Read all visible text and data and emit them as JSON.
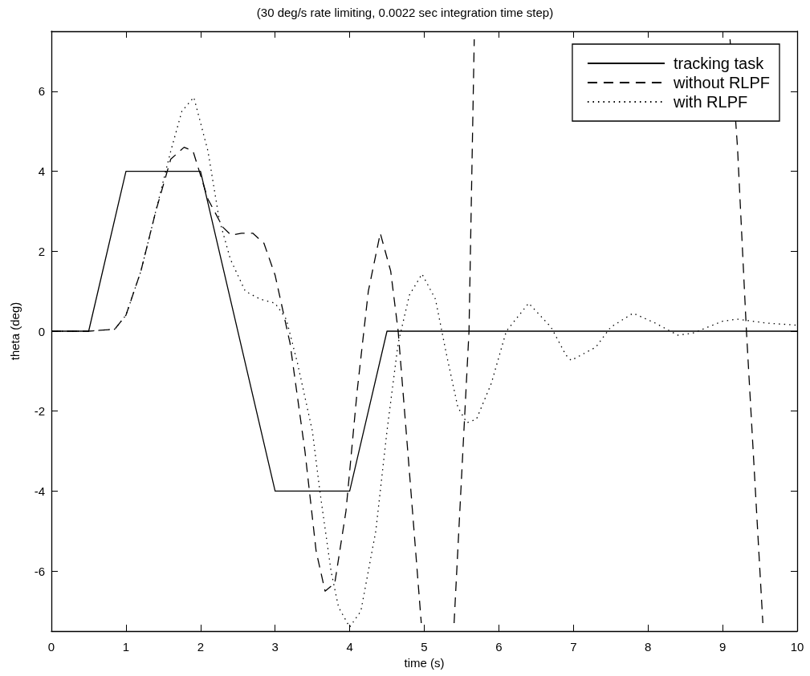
{
  "chart_data": {
    "type": "line",
    "title": "(30 deg/s rate limiting, 0.0022 sec integration time step)",
    "xlabel": "time (s)",
    "ylabel": "theta (deg)",
    "xlim": [
      0,
      10
    ],
    "xticks": [
      0,
      1,
      2,
      3,
      4,
      5,
      6,
      7,
      8,
      9,
      10
    ],
    "ylim": [
      -7.5,
      7.5
    ],
    "yticks": [
      -6,
      -4,
      -2,
      0,
      2,
      4,
      6
    ],
    "grid": false,
    "legend": "top right",
    "marker": "none",
    "series": [
      {
        "name": "tracking task",
        "color": "#000000",
        "line_style": "solid",
        "x": [
          0,
          0.5,
          1,
          2,
          3,
          4,
          4.5,
          10
        ],
        "values": [
          0,
          0,
          4,
          4,
          -4,
          -4,
          0,
          0
        ]
      },
      {
        "name": "without RLPF",
        "color": "#000000",
        "line_style": "dashed",
        "x": [
          0,
          0.5,
          0.85,
          1,
          1.2,
          1.4,
          1.6,
          1.78,
          1.9,
          2.1,
          2.3,
          2.41,
          2.55,
          2.7,
          2.85,
          3,
          3.2,
          3.4,
          3.55,
          3.67,
          3.8,
          3.95,
          4.1,
          4.25,
          4.41,
          4.55,
          4.65,
          4.8,
          4.96,
          5.2,
          5.4,
          5.6,
          5.67,
          7,
          9.1,
          9.2,
          9.32,
          9.54
        ],
        "values": [
          0,
          0,
          0.05,
          0.4,
          1.5,
          3,
          4.3,
          4.6,
          4.5,
          3.3,
          2.6,
          2.4,
          2.45,
          2.45,
          2.2,
          1.4,
          -0.3,
          -3,
          -5.5,
          -6.5,
          -6.3,
          -4.5,
          -1.5,
          1,
          2.45,
          1.5,
          0,
          -3.5,
          -7.3,
          null,
          -7.3,
          0,
          7.3,
          null,
          7.3,
          4.6,
          0,
          -7.3
        ]
      },
      {
        "name": "with RLPF",
        "color": "#000000",
        "line_style": "dotted",
        "x": [
          0,
          0.5,
          0.85,
          1,
          1.2,
          1.4,
          1.6,
          1.75,
          1.91,
          2.1,
          2.25,
          2.4,
          2.6,
          2.8,
          3,
          3.15,
          3.3,
          3.5,
          3.6,
          3.75,
          3.85,
          4,
          4.15,
          4.35,
          4.5,
          4.65,
          4.8,
          4.97,
          5.15,
          5.3,
          5.45,
          5.57,
          5.7,
          5.9,
          6.1,
          6.4,
          6.7,
          6.9,
          6.97,
          7.3,
          7.5,
          7.8,
          8.1,
          8.4,
          8.6,
          9,
          9.2,
          9.6,
          10
        ],
        "values": [
          0,
          0,
          0.05,
          0.4,
          1.5,
          3,
          4.5,
          5.5,
          5.85,
          4.5,
          2.8,
          1.8,
          1,
          0.8,
          0.7,
          0.3,
          -0.8,
          -2.5,
          -4,
          -6,
          -6.9,
          -7.4,
          -7,
          -5,
          -2.5,
          -0.3,
          0.9,
          1.43,
          0.8,
          -0.6,
          -1.9,
          -2.29,
          -2.2,
          -1.3,
          0,
          0.7,
          0.1,
          -0.6,
          -0.73,
          -0.4,
          0.1,
          0.45,
          0.2,
          -0.1,
          -0.05,
          0.25,
          0.3,
          0.2,
          0.15
        ]
      }
    ]
  }
}
